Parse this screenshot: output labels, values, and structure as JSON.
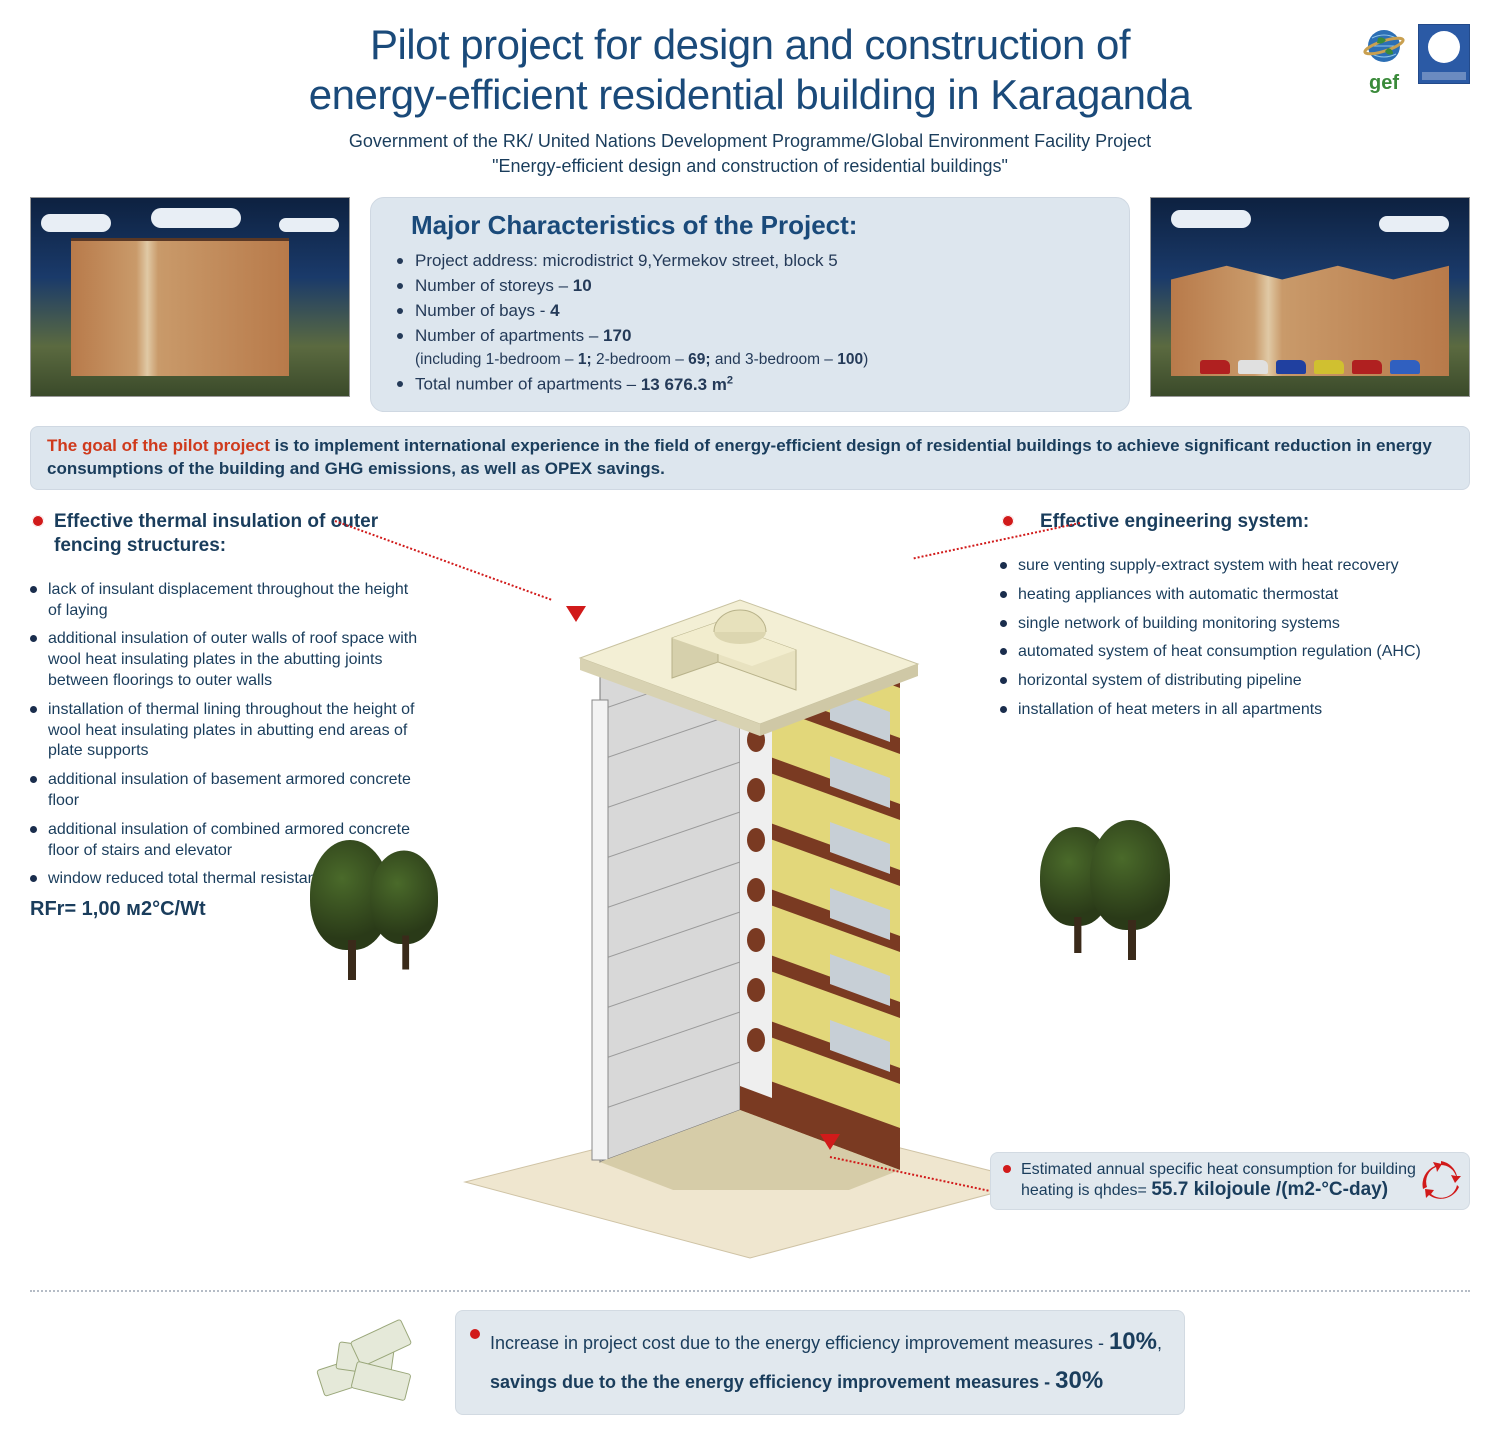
{
  "header": {
    "title_l1": "Pilot project for design and construction of",
    "title_l2": "energy-efficient residential building in Karaganda",
    "subtitle_l1": "Government of the RK/ United Nations Development Programme/Global Environment Facility Project",
    "subtitle_l2": "\"Energy-efficient design and construction of residential buildings\"",
    "gef_label": "gef"
  },
  "characteristics": {
    "title": "Major Characteristics of the Project:",
    "items": [
      {
        "html": "Project address: microdistrict 9,Yermekov street, block 5"
      },
      {
        "html": "Number of storeys – <b>10</b>"
      },
      {
        "html": "Number of bays - <b>4</b>"
      },
      {
        "html": "Number of apartments – <b>170</b><br><span class='sub-paren'>(including 1-bedroom – <b>1;</b> 2-bedroom – <b>69;</b> and 3-bedroom – <b>100</b>)</span>"
      },
      {
        "html": "Total number of apartments – <b>13 676.3 m<sup>2</sup></b>"
      }
    ]
  },
  "goal": {
    "lead": "The goal of the pilot project",
    "rest": "  is to implement international experience in the field of energy-efficient design of residential buildings to achieve significant reduction in energy consumptions of the  building and GHG emissions, as well as OPEX savings."
  },
  "insulation": {
    "title": "Effective thermal insulation of outer fencing structures:",
    "items": [
      "lack of insulant  displacement throughout the height of laying",
      "additional insulation of outer walls of roof space with wool heat insulating plates in the abutting joints between floorings to outer walls",
      "installation of thermal lining throughout the height of wool heat insulating plates in abutting end areas of plate supports",
      "additional insulation of basement armored concrete floor",
      "additional insulation of combined armored concrete floor of stairs and elevator",
      "window reduced total thermal resistance"
    ],
    "rfr": "RFr= 1,00 м2°С/Wt"
  },
  "engineering": {
    "title": "Effective engineering system:",
    "items": [
      "sure venting supply-extract system with  heat recovery",
      "heating appliances with automatic thermostat",
      "single network of building monitoring systems",
      "automated system of heat consumption regulation (AHC)",
      "horizontal system of distributing pipeline",
      "installation of heat meters in all apartments"
    ]
  },
  "heat": {
    "text_pre": "Estimated annual specific heat consumption for building heating  is qhdes= ",
    "value": "55.7 kilojoule /(m2-°C-day)"
  },
  "cost": {
    "line1_pre": "Increase in project cost due to the energy efficiency improvement measures  - ",
    "line1_pct": "10%",
    "line1_suf": ",",
    "line2_pre": "savings due to the  the energy efficiency improvement measures  - ",
    "line2_pct": "30%"
  },
  "colors": {
    "panel_bg": "#dde6ee",
    "accent_red": "#d11a1a",
    "text_primary": "#1a3d5c",
    "title_color": "#1a4a7a"
  }
}
